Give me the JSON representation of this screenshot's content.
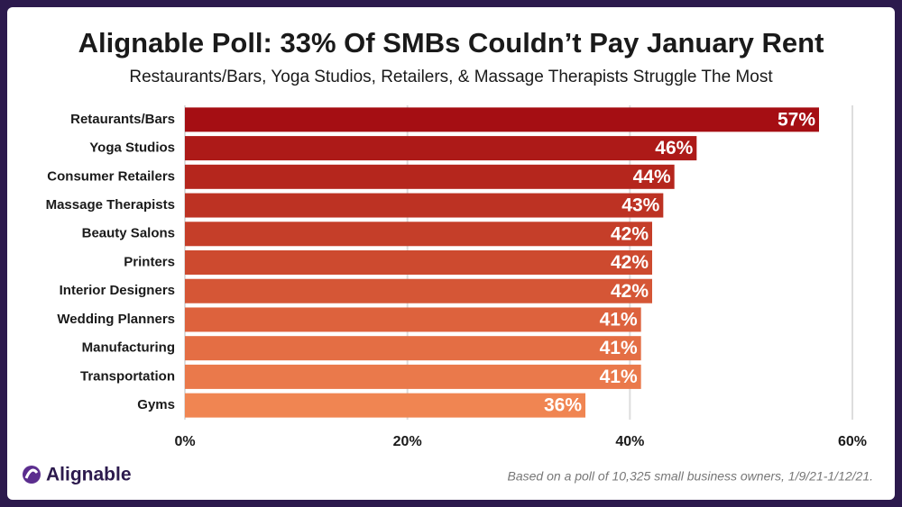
{
  "chart_data": {
    "type": "bar",
    "orientation": "horizontal",
    "title": "Alignable Poll: 33% Of SMBs Couldn’t Pay January Rent",
    "subtitle": "Restaurants/Bars, Yoga Studios, Retailers, & Massage Therapists Struggle The Most",
    "categories": [
      "Retaurants/Bars",
      "Yoga Studios",
      "Consumer Retailers",
      "Massage Therapists",
      "Beauty Salons",
      "Printers",
      "Interior Designers",
      "Wedding Planners",
      "Manufacturing",
      "Transportation",
      "Gyms"
    ],
    "values": [
      57,
      46,
      44,
      43,
      42,
      42,
      42,
      41,
      41,
      41,
      36
    ],
    "value_labels": [
      "57%",
      "46%",
      "44%",
      "43%",
      "42%",
      "42%",
      "42%",
      "41%",
      "41%",
      "41%",
      "36%"
    ],
    "colors": [
      "#a50e13",
      "#ad1a18",
      "#b5261d",
      "#bd3223",
      "#c53e29",
      "#cd4a2f",
      "#d55636",
      "#dd623d",
      "#e46e44",
      "#ea794b",
      "#f08552"
    ],
    "xlim": [
      0,
      60
    ],
    "xticks": [
      {
        "value": 0,
        "label": "0%"
      },
      {
        "value": 20,
        "label": "20%"
      },
      {
        "value": 40,
        "label": "40%"
      },
      {
        "value": 60,
        "label": "60%"
      }
    ],
    "grid": true,
    "brand": "Alignable",
    "footnote": "Based on a poll of 10,325 small business owners, 1/9/21-1/12/21."
  }
}
